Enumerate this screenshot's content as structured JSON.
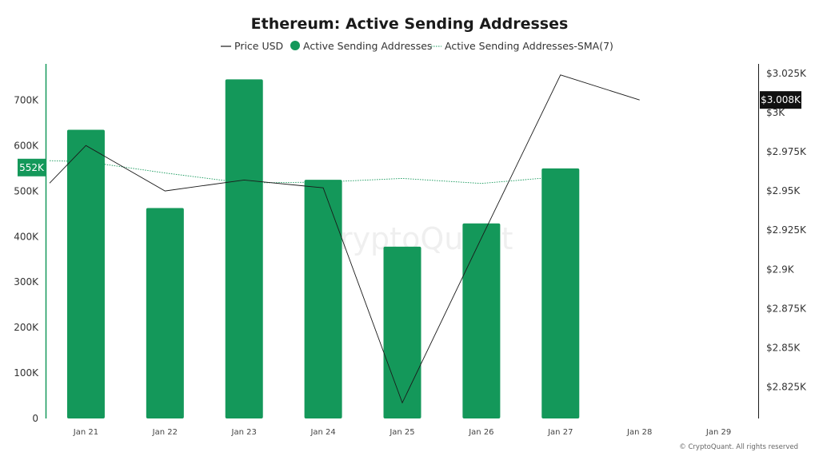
{
  "chart_data": {
    "type": "bar",
    "title": "Ethereum: Active Sending Addresses",
    "categories": [
      "Jan 21",
      "Jan 22",
      "Jan 23",
      "Jan 24",
      "Jan 25",
      "Jan 26",
      "Jan 27",
      "Jan 28",
      "Jan 29"
    ],
    "series": [
      {
        "name": "Active Sending Addresses",
        "kind": "bar",
        "axis": "left",
        "color": "#14985a",
        "values": [
          635000,
          463000,
          746000,
          525000,
          378000,
          429000,
          550000,
          null,
          null
        ]
      },
      {
        "name": "Active Sending Addresses-SMA(7)",
        "kind": "line",
        "style": "dotted",
        "axis": "left",
        "color": "#14985a",
        "values": [
          565000,
          540000,
          518000,
          520000,
          528000,
          517000,
          532000,
          null,
          null
        ]
      },
      {
        "name": "Price USD",
        "kind": "line",
        "axis": "right",
        "color": "#1a1a1a",
        "values": [
          2979,
          2950,
          2957,
          2952,
          2815,
          2920,
          3024,
          3008,
          null
        ]
      }
    ],
    "left_axis": {
      "ylim": [
        0,
        780000
      ],
      "ticks": [
        {
          "value": 0,
          "label": "0"
        },
        {
          "value": 100000,
          "label": "100K"
        },
        {
          "value": 200000,
          "label": "200K"
        },
        {
          "value": 300000,
          "label": "300K"
        },
        {
          "value": 400000,
          "label": "400K"
        },
        {
          "value": 500000,
          "label": "500K"
        },
        {
          "value": 600000,
          "label": "600K"
        },
        {
          "value": 700000,
          "label": "700K"
        }
      ],
      "current_label": {
        "value": 552000,
        "text": "552K"
      }
    },
    "right_axis": {
      "ylim": [
        2805,
        3031
      ],
      "ticks": [
        {
          "value": 2825,
          "label": "$2.825K"
        },
        {
          "value": 2850,
          "label": "$2.85K"
        },
        {
          "value": 2875,
          "label": "$2.875K"
        },
        {
          "value": 2900,
          "label": "$2.9K"
        },
        {
          "value": 2925,
          "label": "$2.925K"
        },
        {
          "value": 2950,
          "label": "$2.95K"
        },
        {
          "value": 2975,
          "label": "$2.975K"
        },
        {
          "value": 3000,
          "label": "$3K"
        },
        {
          "value": 3025,
          "label": "$3.025K"
        }
      ],
      "current_label": {
        "value": 3008,
        "text": "$3.008K"
      }
    },
    "legend": {
      "position": "top-center",
      "entries": [
        "Price USD",
        "Active Sending Addresses",
        "Active Sending Addresses-SMA(7)"
      ]
    },
    "grid": false,
    "watermark": "CryptoQuant",
    "credit": "© CryptoQuant. All rights reserved"
  }
}
